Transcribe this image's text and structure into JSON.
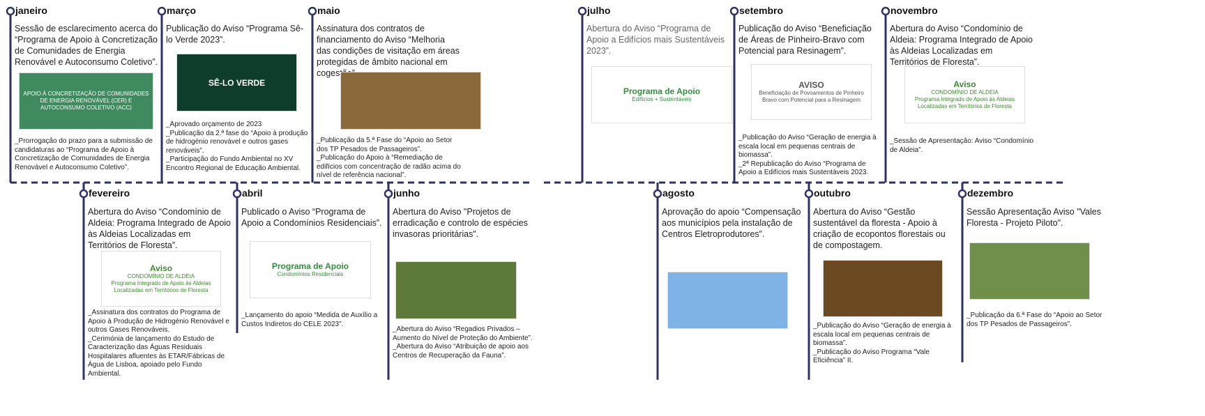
{
  "months": [
    {
      "name": "janeiro",
      "text": "Sessão de esclarecimento acerca do “Programa de Apoio à Concretização de Comunidades de Energia Renovável e Autoconsumo Coletivo”.",
      "notes": [
        "_Prorrogação do prazo para a submissão de candidaturas ao “Programa de Apoio à Concretização de Comunidades de Energia Renovável e Autoconsumo Coletivo”."
      ],
      "image_text": [
        "APOIO À CONCRETIZAÇÃO DE COMUNIDADES DE ENERGIA RENOVÁVEL (CER) E AUTOCONSUMO COLETIVO (ACC)"
      ]
    },
    {
      "name": "fevereiro",
      "text": "Abertura do Aviso “Condomínio de Aldeia: Programa Integrado de Apoio às Aldeias Localizadas em Territórios de Floresta”.",
      "notes": [
        "_Assinatura dos contratos do Programa de Apoio à Produção de Hidrogénio Renovável e outros Gases Renováveis.",
        "_Cerimónia de lançamento do Estudo de Caracterização das Águas Residuais Hospitalares afluentes às ETAR/Fábricas de Água de Lisboa, apoiado pelo Fundo Ambiental."
      ],
      "image_text": [
        "Aviso",
        "CONDOMÍNIO DE ALDEIA",
        "Programa Integrado de Apoio às Aldeias Localizadas em Territórios de Floresta"
      ]
    },
    {
      "name": "março",
      "text": "Publicação do Aviso “Programa Sê-lo Verde 2023”.",
      "notes": [
        "_Aprovado orçamento de 2023",
        "_Publicação da 2.ª fase do “Apoio à produção de hidrogénio renovável e outros gases renováveis”.",
        "_Participação do Fundo Ambiental no XV Encontro Regional de Educação Ambiental."
      ],
      "image_text": [
        "SÊ-LO VERDE"
      ]
    },
    {
      "name": "abril",
      "text": "Publicado o Aviso “Programa de Apoio a Condomínios Residenciais”.",
      "notes": [
        "_Lançamento do apoio “Medida de Auxílio a Custos Indiretos do CELE 2023”."
      ],
      "image_text": [
        "Programa de Apoio",
        "Condomínios Residenciais"
      ]
    },
    {
      "name": "maio",
      "text": "Assinatura dos contratos de financiamento do Aviso “Melhoria das condições de visitação em áreas protegidas de âmbito nacional em cogestão”.",
      "notes": [
        "_Publicação da 5.ª Fase do “Apoio ao Setor dos TP Pesados de Passageiros”.",
        "_Publicação do Apoio à “Remediação de edifícios com concentração de radão acima do nível de referência nacional”."
      ],
      "image_text": []
    },
    {
      "name": "junho",
      "text": "Abertura do Aviso \"Projetos de erradicação e controlo de espécies invasoras prioritárias\".",
      "notes": [
        "_Abertura do Aviso “Regadios Privados – Aumento do Nível de Proteção do Ambiente”.",
        "_Abertura do Aviso “Atribuição de apoio aos Centros de Recuperação da Fauna”."
      ],
      "image_text": []
    },
    {
      "name": "julho",
      "text": "Abertura do Aviso “Programa de Apoio a Edifícios mais Sustentáveis 2023”.",
      "notes": [],
      "image_text": [
        "Programa de Apoio",
        "Edifícios + Sustentáveis"
      ]
    },
    {
      "name": "agosto",
      "text": "Aprovação do apoio “Compensação aos municípios pela instalação de Centros Eletroprodutores”.",
      "notes": [],
      "image_text": []
    },
    {
      "name": "setembro",
      "text": "Publicação do Aviso “Beneficiação de Áreas de Pinheiro-Bravo com Potencial para Resinagem”.",
      "notes": [
        "_Publicação do Aviso “Geração de energia à escala local em pequenas centrais de biomassa”.",
        "_2ª Republicação do Aviso “Programa de Apoio a Edifícios mais Sustentáveis 2023."
      ],
      "image_text": [
        "AVISO",
        "Beneficiação de Povoamentos de Pinheiro Bravo com Potencial para a Resinagem"
      ]
    },
    {
      "name": "outubro",
      "text": "Abertura do Aviso “Gestão sustentável da floresta - Apoio à criação de ecopontos florestais ou de compostagem.",
      "notes": [
        "_Publicação do Aviso “Geração de energia à escala local em pequenas centrais de biomassa”.",
        "_Publicação do Aviso Programa “Vale Eficiência” II."
      ],
      "image_text": []
    },
    {
      "name": "novembro",
      "text": "Abertura do Aviso “Condomínio de Aldeia: Programa Integrado de Apoio às Aldeias Localizadas em Territórios de Floresta”.",
      "notes": [
        "_Sessão de Apresentação: Aviso “Condomínio de Aldeia”."
      ],
      "image_text": [
        "Aviso",
        "CONDOMÍNIO DE ALDEIA",
        "Programa Integrado de Apoio às Aldeias Localizadas em Territórios de Floresta"
      ]
    },
    {
      "name": "dezembro",
      "text": "Sessão Apresentação Aviso \"Vales Floresta - Projeto Piloto\".",
      "notes": [
        "_Publicação da 6.ª Fase do “Apoio ao Setor dos TP Pesados de Passageiros”."
      ],
      "image_text": []
    }
  ]
}
